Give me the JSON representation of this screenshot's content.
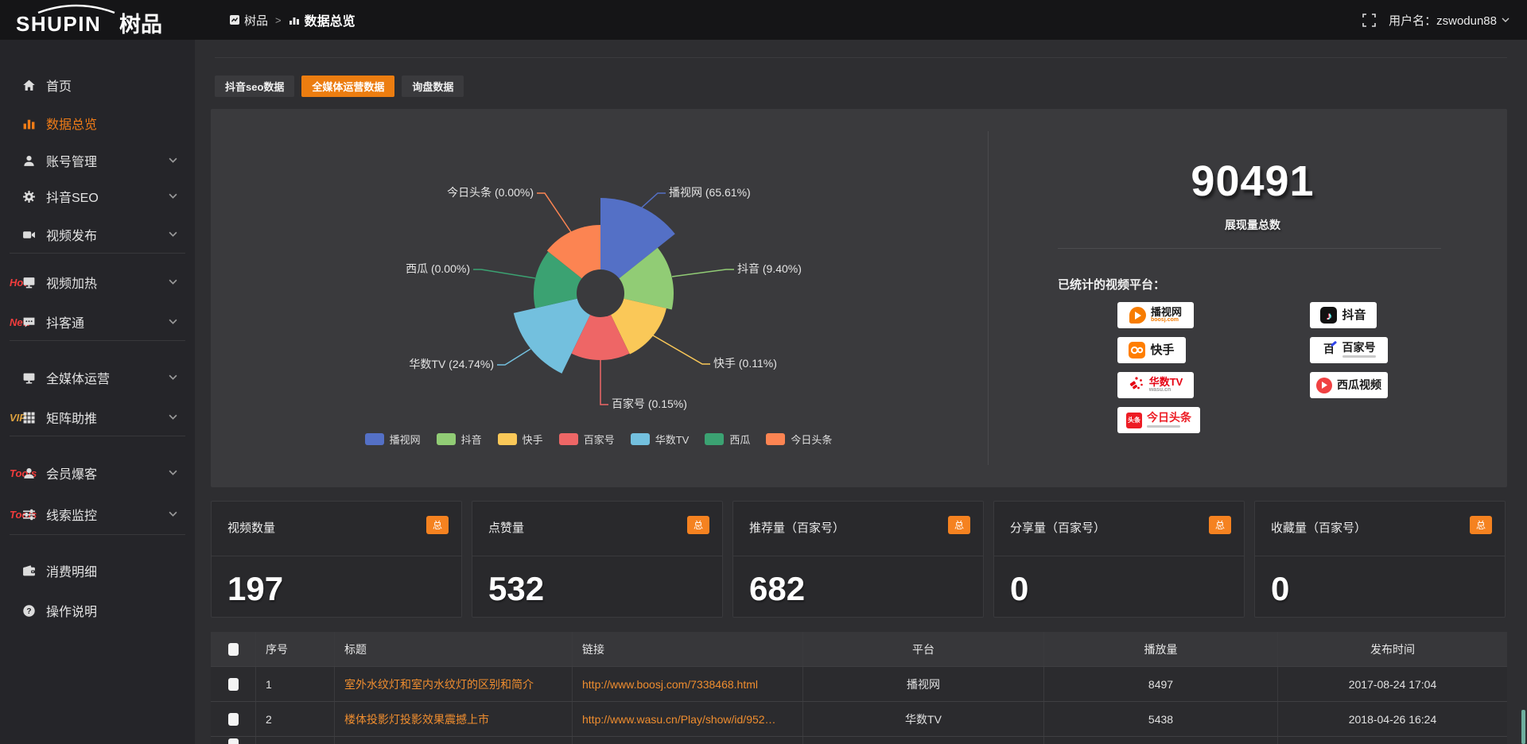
{
  "topbar": {
    "logo_en": "SHUPIN",
    "logo_cn": "树品",
    "breadcrumb_root": "树品",
    "breadcrumb_sep": ">",
    "breadcrumb_current": "数据总览",
    "username": "用户名：zswodun88"
  },
  "sidebar": {
    "items": [
      {
        "label": "首页",
        "icon": "home-icon"
      },
      {
        "label": "数据总览",
        "icon": "bar-chart-icon",
        "active": true
      },
      {
        "label": "账号管理",
        "icon": "user-icon",
        "chevron": true
      },
      {
        "label": "抖音SEO",
        "icon": "gear-icon",
        "chevron": true
      },
      {
        "label": "视频发布",
        "icon": "video-camera-icon",
        "chevron": true
      },
      {
        "label": "视频加热",
        "icon": "screen-icon",
        "badge": "Hot",
        "badge_color": "#f23c3c",
        "chevron": true
      },
      {
        "label": "抖客通",
        "icon": "chat-icon",
        "badge": "New",
        "badge_color": "#f23c3c",
        "chevron": true
      },
      {
        "label": "全媒体运营",
        "icon": "monitor-icon",
        "chevron": true
      },
      {
        "label": "矩阵助推",
        "icon": "grid-icon",
        "badge": "VIP",
        "badge_color": "#dca13e",
        "chevron": true
      },
      {
        "label": "会员爆客",
        "icon": "member-icon",
        "badge": "Tools",
        "badge_color": "#f23c3c",
        "chevron": true
      },
      {
        "label": "线索监控",
        "icon": "sliders-icon",
        "badge": "Tools",
        "badge_color": "#f23c3c",
        "chevron": true
      },
      {
        "label": "消费明细",
        "icon": "wallet-icon"
      },
      {
        "label": "操作说明",
        "icon": "help-icon"
      }
    ]
  },
  "tabs": [
    {
      "label": "抖音seo数据"
    },
    {
      "label": "全媒体运营数据",
      "active": true
    },
    {
      "label": "询盘数据"
    }
  ],
  "chart_data": {
    "type": "pie",
    "subtype": "nightingale-rose",
    "legend_position": "bottom",
    "items": [
      {
        "name": "播视网",
        "percent": 65.61,
        "label": "播视网 (65.61%)",
        "color": "#5470c6"
      },
      {
        "name": "抖音",
        "percent": 9.4,
        "label": "抖音 (9.40%)",
        "color": "#91cc75"
      },
      {
        "name": "快手",
        "percent": 0.11,
        "label": "快手 (0.11%)",
        "color": "#fac858"
      },
      {
        "name": "百家号",
        "percent": 0.15,
        "label": "百家号 (0.15%)",
        "color": "#ee6666"
      },
      {
        "name": "华数TV",
        "percent": 24.74,
        "label": "华数TV (24.74%)",
        "color": "#73c0de"
      },
      {
        "name": "西瓜",
        "percent": 0.0,
        "label": "西瓜 (0.00%)",
        "color": "#3ba272"
      },
      {
        "name": "今日头条",
        "percent": 0.0,
        "label": "今日头条 (0.00%)",
        "color": "#fc8452"
      }
    ],
    "legend": [
      "播视网",
      "抖音",
      "快手",
      "百家号",
      "华数TV",
      "西瓜",
      "今日头条"
    ]
  },
  "summary": {
    "total": "90491",
    "total_label": "展现量总数",
    "platforms_label": "已统计的视频平台：",
    "platforms": [
      {
        "name": "播视网",
        "sub": "boosj.com"
      },
      {
        "name": "抖音"
      },
      {
        "name": "快手"
      },
      {
        "name": "百家号"
      },
      {
        "name": "华数TV",
        "sub": "wasu.cn"
      },
      {
        "name": "西瓜视频"
      },
      {
        "name": "今日头条"
      }
    ]
  },
  "stat_cards": [
    {
      "label": "视频数量",
      "badge": "总",
      "value": "197"
    },
    {
      "label": "点赞量",
      "badge": "总",
      "value": "532"
    },
    {
      "label": "推荐量（百家号）",
      "badge": "总",
      "value": "682"
    },
    {
      "label": "分享量（百家号）",
      "badge": "总",
      "value": "0"
    },
    {
      "label": "收藏量（百家号）",
      "badge": "总",
      "value": "0"
    }
  ],
  "table": {
    "columns": [
      "序号",
      "标题",
      "链接",
      "平台",
      "播放量",
      "发布时间"
    ],
    "rows": [
      {
        "no": "1",
        "title": "室外水纹灯和室内水纹灯的区别和简介",
        "link": "http://www.boosj.com/7338468.html",
        "platform": "播视网",
        "views": "8497",
        "time": "2017-08-24 17:04"
      },
      {
        "no": "2",
        "title": "楼体投影灯投影效果震撼上市",
        "link": "http://www.wasu.cn/Play/show/id/952…",
        "platform": "华数TV",
        "views": "5438",
        "time": "2018-04-26 16:24"
      }
    ]
  },
  "colors": {
    "accent_orange": "#ec7d10",
    "badge_orange": "#f58220",
    "hot_red": "#f23c3c",
    "vip_gold": "#dca13e",
    "link_orange": "#ef8d2f"
  }
}
